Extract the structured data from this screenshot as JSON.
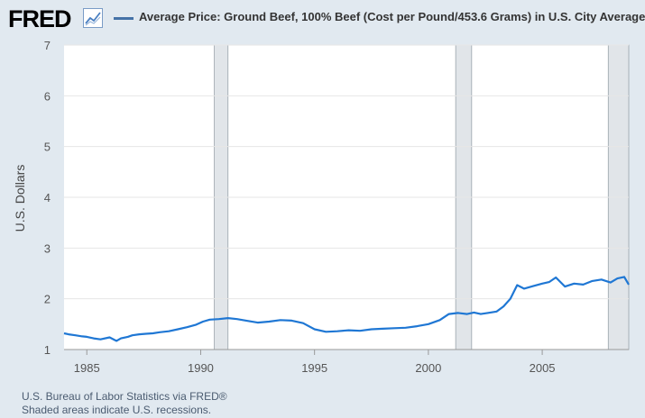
{
  "header": {
    "logo_text": "FRED",
    "legend_label": "Average Price: Ground Beef, 100% Beef (Cost per Pound/453.6 Grams) in U.S. City Average"
  },
  "footer": {
    "source": "U.S. Bureau of Labor Statistics via FRED®",
    "recession_note": "Shaded areas indicate U.S. recessions."
  },
  "colors": {
    "line": "#1f77d4",
    "legend_swatch": "#4572a7",
    "recession": "#e1e5e9",
    "background": "#e1e9f0",
    "plot_background": "#ffffff"
  },
  "chart_data": {
    "type": "line",
    "title": "",
    "xlabel": "",
    "ylabel": "U.S. Dollars",
    "xlim": [
      1984.0,
      2008.8
    ],
    "ylim": [
      1,
      7
    ],
    "x_ticks": [
      "1985",
      "1990",
      "1995",
      "2000",
      "2005"
    ],
    "y_ticks": [
      "1",
      "2",
      "3",
      "4",
      "5",
      "6",
      "7"
    ],
    "grid": "horizontal",
    "recessions": [
      [
        1990.6,
        1991.2
      ],
      [
        2001.2,
        2001.9
      ],
      [
        2007.9,
        2009.5
      ]
    ],
    "series": [
      {
        "name": "Average Price: Ground Beef, 100% Beef (Cost per Pound/453.6 Grams) in U.S. City Average",
        "x": [
          1984.0,
          1984.2,
          1984.5,
          1984.8,
          1985.0,
          1985.3,
          1985.6,
          1986.0,
          1986.3,
          1986.5,
          1986.8,
          1987.0,
          1987.3,
          1987.6,
          1987.9,
          1988.2,
          1988.6,
          1989.0,
          1989.4,
          1989.8,
          1990.1,
          1990.4,
          1990.8,
          1991.2,
          1991.6,
          1992.0,
          1992.5,
          1993.0,
          1993.5,
          1994.0,
          1994.5,
          1995.0,
          1995.5,
          1996.0,
          1996.5,
          1997.0,
          1997.5,
          1998.0,
          1998.5,
          1999.0,
          1999.5,
          2000.0,
          2000.5,
          2000.9,
          2001.3,
          2001.7,
          2002.0,
          2002.3,
          2002.6,
          2003.0,
          2003.3,
          2003.6,
          2003.9,
          2004.2,
          2004.6,
          2005.0,
          2005.3,
          2005.6,
          2006.0,
          2006.4,
          2006.8,
          2007.2,
          2007.6,
          2008.0,
          2008.3,
          2008.6,
          2008.8
        ],
        "y": [
          1.32,
          1.3,
          1.28,
          1.26,
          1.25,
          1.22,
          1.2,
          1.24,
          1.17,
          1.22,
          1.25,
          1.28,
          1.3,
          1.31,
          1.32,
          1.34,
          1.36,
          1.4,
          1.44,
          1.49,
          1.55,
          1.59,
          1.6,
          1.62,
          1.6,
          1.57,
          1.53,
          1.55,
          1.58,
          1.57,
          1.52,
          1.4,
          1.35,
          1.36,
          1.38,
          1.37,
          1.4,
          1.41,
          1.42,
          1.43,
          1.46,
          1.5,
          1.58,
          1.7,
          1.72,
          1.7,
          1.73,
          1.7,
          1.72,
          1.75,
          1.85,
          2.0,
          2.27,
          2.2,
          2.25,
          2.3,
          2.33,
          2.42,
          2.24,
          2.3,
          2.28,
          2.35,
          2.38,
          2.32,
          2.4,
          2.43,
          2.28
        ]
      }
    ]
  }
}
